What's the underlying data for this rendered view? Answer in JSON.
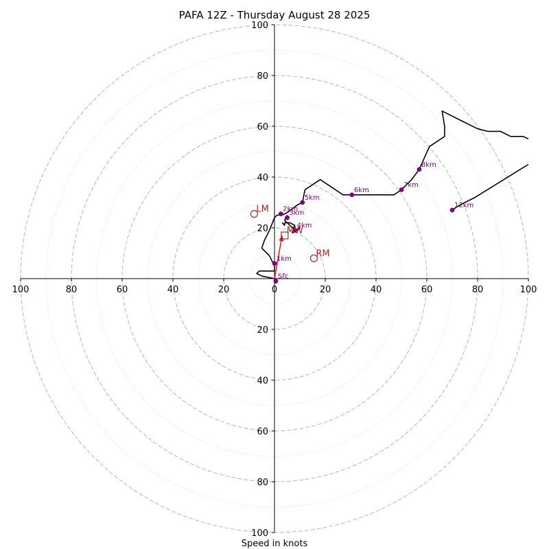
{
  "chart_data": {
    "type": "scatter",
    "title": "PAFA 12Z - Thursday August 28 2025",
    "xlabel": "Speed in knots",
    "ylabel": "",
    "xlim": [
      -100,
      100
    ],
    "ylim": [
      -100,
      100
    ],
    "ring_values": [
      20,
      40,
      60,
      80,
      100
    ],
    "minor_ring_values": [
      10,
      30,
      50,
      70,
      90
    ],
    "x_tick_labels": [
      "100",
      "80",
      "60",
      "40",
      "20",
      "0",
      "20",
      "40",
      "60",
      "80",
      "100"
    ],
    "y_tick_labels": [
      "100",
      "80",
      "60",
      "40",
      "20",
      "20",
      "40",
      "60",
      "80",
      "100"
    ],
    "grid": true,
    "hodograph_trace": [
      [
        0,
        0
      ],
      [
        -5,
        1
      ],
      [
        -7,
        2
      ],
      [
        -6,
        3
      ],
      [
        0,
        3
      ],
      [
        0,
        4
      ],
      [
        0,
        5
      ],
      [
        -1,
        7
      ],
      [
        -2,
        9
      ],
      [
        -4,
        11
      ],
      [
        -5,
        12
      ],
      [
        -4,
        15
      ],
      [
        -2,
        19
      ],
      [
        0,
        24
      ],
      [
        1,
        25
      ],
      [
        3,
        25
      ],
      [
        5,
        26
      ],
      [
        9,
        29
      ],
      [
        11,
        30
      ],
      [
        12,
        35
      ],
      [
        15,
        37
      ],
      [
        18,
        39
      ],
      [
        21,
        37
      ],
      [
        27,
        33
      ],
      [
        31,
        33
      ],
      [
        47,
        33
      ],
      [
        50,
        35
      ],
      [
        54,
        39
      ],
      [
        57,
        43
      ],
      [
        61,
        52
      ],
      [
        67,
        56
      ],
      [
        67,
        60
      ],
      [
        66,
        66
      ],
      [
        74,
        62
      ],
      [
        80,
        59
      ],
      [
        84,
        58
      ],
      [
        89,
        58
      ],
      [
        93,
        56
      ],
      [
        98,
        56
      ],
      [
        100,
        55
      ]
    ],
    "upper_trace": [
      [
        70,
        27
      ],
      [
        73,
        29
      ],
      [
        79,
        32
      ],
      [
        100,
        45
      ]
    ],
    "loop_trace": [
      [
        5,
        25
      ],
      [
        4,
        23
      ],
      [
        6,
        21
      ],
      [
        8,
        19
      ],
      [
        10,
        20
      ],
      [
        9,
        19
      ],
      [
        7,
        18
      ],
      [
        8,
        21
      ],
      [
        6,
        22
      ],
      [
        4,
        22
      ],
      [
        4,
        21
      ],
      [
        3,
        22
      ]
    ],
    "height_markers": [
      {
        "label": "Sfc",
        "x": 0.5,
        "y": -1
      },
      {
        "label": "1km",
        "x": 0,
        "y": 6
      },
      {
        "label": "2km",
        "x": 2.5,
        "y": 25.5
      },
      {
        "label": "3km",
        "x": 5,
        "y": 24
      },
      {
        "label": "4km",
        "x": 8,
        "y": 19
      },
      {
        "label": "5km",
        "x": 11,
        "y": 30
      },
      {
        "label": "6km",
        "x": 30.5,
        "y": 33
      },
      {
        "label": "7km",
        "x": 50,
        "y": 35
      },
      {
        "label": "8km",
        "x": 57,
        "y": 43
      },
      {
        "label": "12km",
        "x": 70,
        "y": 27
      }
    ],
    "storm_motion": [
      {
        "label": "LM",
        "x": -8,
        "y": 25.5
      },
      {
        "label": "RM",
        "x": 15.5,
        "y": 8
      }
    ],
    "mean_wind": {
      "label": "MW",
      "x": 4,
      "y": 17
    },
    "shear_vector": {
      "from": [
        0,
        0
      ],
      "to": [
        3,
        17
      ]
    },
    "colors": {
      "trace": "#000000",
      "marker": "#800080",
      "storm": "#b22222",
      "shear": "#ff0000",
      "major_grid": "#bbbbbb",
      "minor_grid": "#dddddd"
    }
  }
}
